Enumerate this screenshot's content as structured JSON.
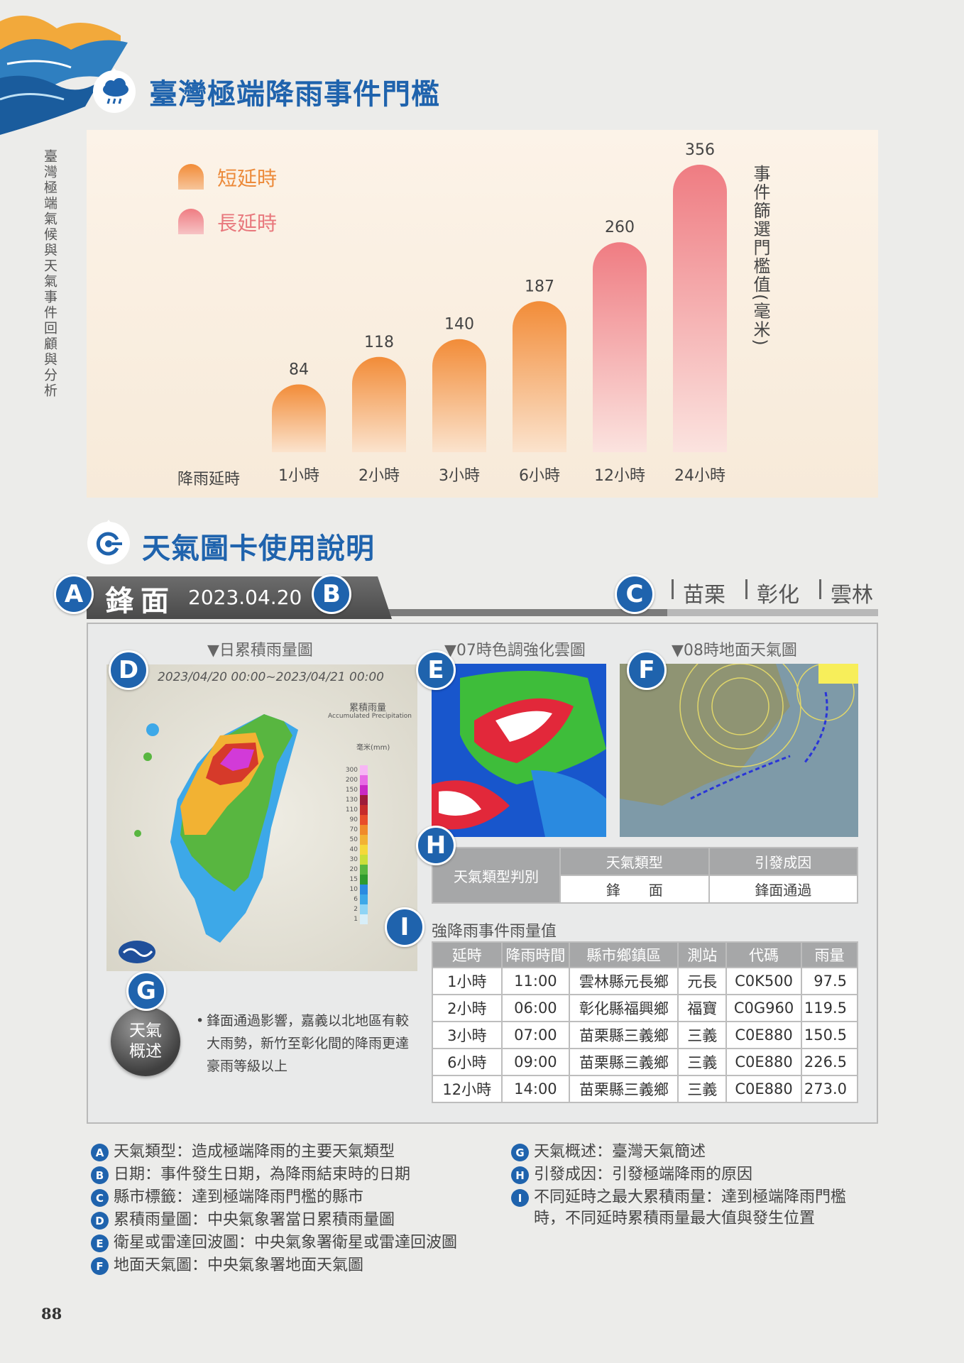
{
  "side_title": "臺灣極端氣候與天氣事件回顧與分析",
  "section1": {
    "title": "臺灣極端降雨事件門檻"
  },
  "chart_data": {
    "type": "bar",
    "categories": [
      "1小時",
      "2小時",
      "3小時",
      "6小時",
      "12小時",
      "24小時"
    ],
    "values": [
      84,
      118,
      140,
      187,
      260,
      356
    ],
    "series_groups": [
      "短延時",
      "短延時",
      "短延時",
      "短延時",
      "長延時",
      "長延時"
    ],
    "legend": [
      "短延時",
      "長延時"
    ],
    "xlabel": "降雨延時",
    "ylabel": "事件篩選門檻值(毫米)",
    "ylim": [
      0,
      370
    ],
    "colors": {
      "short": "#f28c38",
      "long": "#ef7c82"
    },
    "legend_position": "top-left",
    "grid": false
  },
  "section2": {
    "title": "天氣圖卡使用說明"
  },
  "card": {
    "weather_type": "鋒面",
    "date": "2023.04.20",
    "counties": [
      "苗栗",
      "彰化",
      "雲林"
    ],
    "captions": {
      "d": "▼日累積雨量圖",
      "e": "▼07時色調強化雲圖",
      "f": "▼08時地面天氣圖"
    },
    "map_d": {
      "period": "2023/04/20 00:00~2023/04/21 00:00",
      "legend_title": "累積雨量",
      "legend_sub": "Accumulated Precipitation",
      "unit": "毫米(mm)",
      "scale": [
        "300",
        "200",
        "150",
        "130",
        "110",
        "90",
        "70",
        "50",
        "40",
        "30",
        "20",
        "15",
        "10",
        "6",
        "2",
        "1"
      ]
    },
    "table_h": {
      "row_label": "天氣類型判別",
      "col1": "天氣類型",
      "col2": "引發成因",
      "val1": "鋒　　面",
      "val2": "鋒面通過"
    },
    "table_i": {
      "title": "強降雨事件雨量值",
      "headers": [
        "延時",
        "降雨時間",
        "縣市鄉鎮區",
        "測站",
        "代碼",
        "雨量"
      ],
      "rows": [
        [
          "1小時",
          "11:00",
          "雲林縣元長鄉",
          "元長",
          "C0K500",
          "97.5"
        ],
        [
          "2小時",
          "06:00",
          "彰化縣福興鄉",
          "福寶",
          "C0G960",
          "119.5"
        ],
        [
          "3小時",
          "07:00",
          "苗栗縣三義鄉",
          "三義",
          "C0E880",
          "150.5"
        ],
        [
          "6小時",
          "09:00",
          "苗栗縣三義鄉",
          "三義",
          "C0E880",
          "226.5"
        ],
        [
          "12小時",
          "14:00",
          "苗栗縣三義鄉",
          "三義",
          "C0E880",
          "273.0"
        ]
      ]
    },
    "summary_label_1": "天氣",
    "summary_label_2": "概述",
    "summary_lines": [
      "鋒面通過影響，嘉義以北地區有較",
      "大雨勢，新竹至彰化間的降雨更達",
      "豪雨等級以上"
    ]
  },
  "badges": [
    "A",
    "B",
    "C",
    "D",
    "E",
    "F",
    "G",
    "H",
    "I"
  ],
  "notes_left": [
    {
      "badge": "A",
      "text": "天氣類型：造成極端降雨的主要天氣類型"
    },
    {
      "badge": "B",
      "text": "日期：事件發生日期，為降雨結束時的日期"
    },
    {
      "badge": "C",
      "text": "縣市標籤：達到極端降雨門檻的縣市"
    },
    {
      "badge": "D",
      "text": "累積雨量圖：中央氣象署當日累積雨量圖"
    },
    {
      "badge": "E",
      "text": "衛星或雷達回波圖：中央氣象署衛星或雷達回波圖"
    },
    {
      "badge": "F",
      "text": "地面天氣圖：中央氣象署地面天氣圖"
    }
  ],
  "notes_right": [
    {
      "badge": "G",
      "text": "天氣概述：臺灣天氣簡述"
    },
    {
      "badge": "H",
      "text": "引發成因：引發極端降雨的原因"
    },
    {
      "badge": "I",
      "text": "不同延時之最大累積雨量：達到極端降雨門檻",
      "text2": "時，不同延時累積雨量最大值與發生位置"
    }
  ],
  "page_number": "88"
}
